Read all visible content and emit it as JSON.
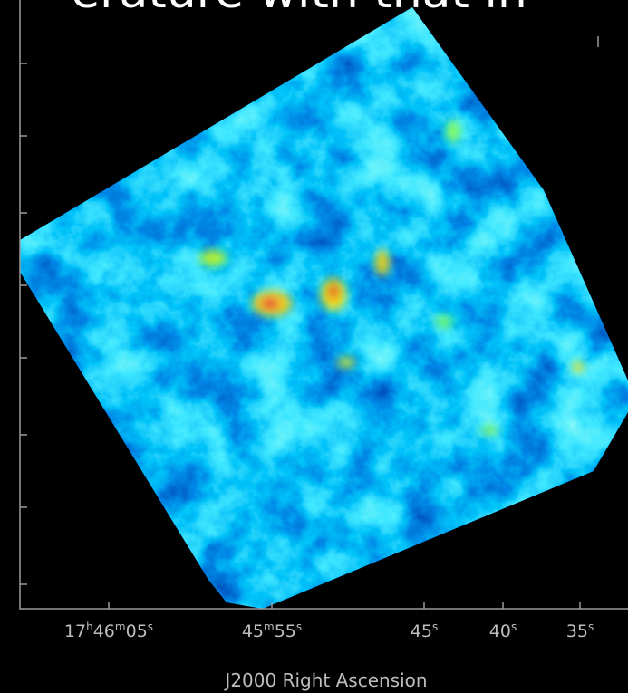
{
  "header": {
    "title": "erature with that in"
  },
  "x_axis": {
    "label": "J2000 Right Ascension",
    "ticks": [
      [
        [
          "17",
          "h"
        ],
        [
          "46",
          "m"
        ],
        [
          "05",
          "s"
        ]
      ],
      [
        [
          "45",
          "m"
        ],
        [
          "55",
          "s"
        ]
      ],
      [
        [
          "45",
          "s"
        ]
      ],
      [
        [
          "40",
          "s"
        ]
      ],
      [
        [
          "35",
          "s"
        ]
      ]
    ]
  }
}
